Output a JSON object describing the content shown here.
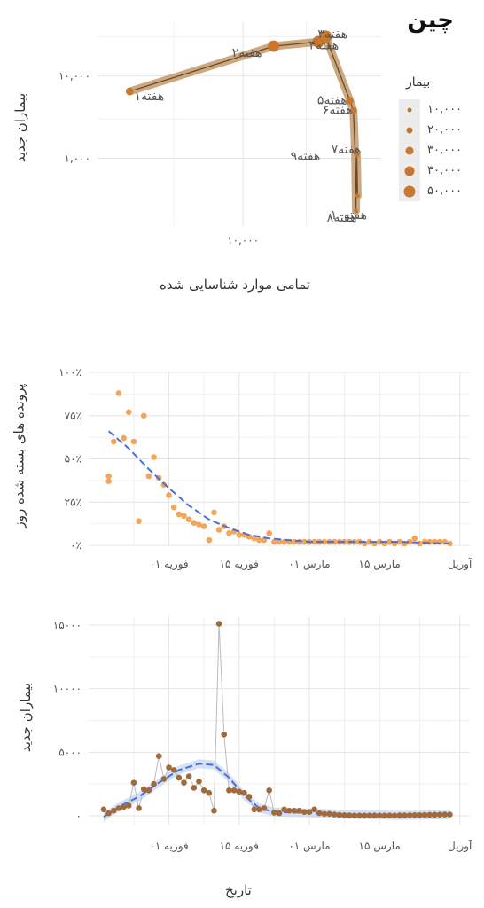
{
  "page_title": "چین",
  "chart_data": [
    {
      "type": "line",
      "ylabel": "بیماران جدید",
      "xlabel": "تمامی موارد شناسایی شده",
      "x_scale": "log",
      "y_scale": "log",
      "x_ticks": [
        {
          "value": 10000,
          "label": "۱۰,۰۰۰"
        }
      ],
      "y_ticks": [
        {
          "value": 1000,
          "label": "۱,۰۰۰"
        },
        {
          "value": 10000,
          "label": "۱۰,۰۰۰"
        }
      ],
      "points": [
        {
          "label": "هفته۱",
          "total": 1400,
          "new": 6500
        },
        {
          "label": "هفته۲",
          "total": 17000,
          "new": 23000
        },
        {
          "label": "هفته۳",
          "total": 37000,
          "new": 26000
        },
        {
          "label": "هفته۴",
          "total": 42000,
          "new": 30000
        },
        {
          "label": "هفته۵",
          "total": 64000,
          "new": 5000
        },
        {
          "label": "هفته۶",
          "total": 68000,
          "new": 3800
        },
        {
          "label": "هفته۷",
          "total": 70000,
          "new": 1200
        },
        {
          "label": "هفته۸",
          "total": 71000,
          "new": 230
        },
        {
          "label": "هفته۹",
          "total": 72000,
          "new": 1100
        },
        {
          "label": "هفته۱۰",
          "total": 73000,
          "new": 350
        }
      ],
      "legend_title": "بیمار",
      "legend": [
        {
          "label": "۱۰,۰۰۰",
          "value": 10000
        },
        {
          "label": "۲۰,۰۰۰",
          "value": 20000
        },
        {
          "label": "۳۰,۰۰۰",
          "value": 30000
        },
        {
          "label": "۴۰,۰۰۰",
          "value": 40000
        },
        {
          "label": "۵۰,۰۰۰",
          "value": 50000
        }
      ],
      "colors": {
        "line": "#6b4a2b",
        "band": "#c49a6c",
        "point": "#c8782e"
      }
    },
    {
      "type": "scatter",
      "ylabel": "پرونده های بسته شده روز",
      "x_ticks": [
        {
          "day": 14,
          "label": "۰۱ فوریه"
        },
        {
          "day": 28,
          "label": "۱۵ فوریه"
        },
        {
          "day": 42,
          "label": "۰۱ مارس"
        },
        {
          "day": 56,
          "label": "۱۵ مارس"
        },
        {
          "day": 72,
          "label": "آوریل"
        }
      ],
      "y_ticks": [
        {
          "value": 0,
          "label": "۰٪"
        },
        {
          "value": 25,
          "label": "۲۵٪"
        },
        {
          "value": 50,
          "label": "۵۰٪"
        },
        {
          "value": 75,
          "label": "۷۵٪"
        },
        {
          "value": 100,
          "label": "۱۰۰٪"
        }
      ],
      "points": [
        [
          2,
          40
        ],
        [
          2,
          37
        ],
        [
          3,
          60
        ],
        [
          4,
          88
        ],
        [
          5,
          62
        ],
        [
          6,
          77
        ],
        [
          7,
          60
        ],
        [
          8,
          14
        ],
        [
          9,
          75
        ],
        [
          10,
          40
        ],
        [
          11,
          51
        ],
        [
          12,
          39
        ],
        [
          13,
          35
        ],
        [
          14,
          29
        ],
        [
          15,
          22
        ],
        [
          16,
          18
        ],
        [
          17,
          17
        ],
        [
          18,
          15
        ],
        [
          19,
          13
        ],
        [
          20,
          12
        ],
        [
          21,
          11
        ],
        [
          22,
          3
        ],
        [
          23,
          19
        ],
        [
          24,
          9
        ],
        [
          25,
          11
        ],
        [
          26,
          7
        ],
        [
          27,
          8
        ],
        [
          28,
          6
        ],
        [
          29,
          6
        ],
        [
          30,
          5
        ],
        [
          31,
          4
        ],
        [
          32,
          3
        ],
        [
          33,
          3
        ],
        [
          34,
          7
        ],
        [
          35,
          2
        ],
        [
          36,
          2
        ],
        [
          37,
          2
        ],
        [
          38,
          2
        ],
        [
          39,
          2
        ],
        [
          40,
          2
        ],
        [
          41,
          2
        ],
        [
          42,
          2
        ],
        [
          43,
          2
        ],
        [
          44,
          2
        ],
        [
          45,
          2
        ],
        [
          46,
          2
        ],
        [
          47,
          2
        ],
        [
          48,
          2
        ],
        [
          49,
          2
        ],
        [
          50,
          2
        ],
        [
          51,
          2
        ],
        [
          52,
          2
        ],
        [
          53,
          1
        ],
        [
          54,
          2
        ],
        [
          55,
          1
        ],
        [
          56,
          2
        ],
        [
          57,
          1
        ],
        [
          58,
          2
        ],
        [
          59,
          1
        ],
        [
          60,
          2
        ],
        [
          61,
          1
        ],
        [
          62,
          2
        ],
        [
          63,
          4
        ],
        [
          64,
          1
        ],
        [
          65,
          2
        ],
        [
          66,
          2
        ],
        [
          67,
          2
        ],
        [
          68,
          2
        ],
        [
          69,
          2
        ],
        [
          70,
          1
        ]
      ],
      "trend": [
        [
          2,
          66
        ],
        [
          6,
          56
        ],
        [
          10,
          44
        ],
        [
          14,
          33
        ],
        [
          18,
          23
        ],
        [
          22,
          15
        ],
        [
          26,
          10
        ],
        [
          30,
          6
        ],
        [
          34,
          4
        ],
        [
          38,
          3
        ],
        [
          42,
          2
        ],
        [
          50,
          2
        ],
        [
          60,
          2
        ],
        [
          70,
          1
        ]
      ],
      "colors": {
        "point": "#ef9c47",
        "trend": "#4a6ee0"
      }
    },
    {
      "type": "scatter",
      "ylabel": "بیماران جدید",
      "xlabel": "تاریخ",
      "x_ticks": [
        {
          "day": 14,
          "label": "۰۱ فوریه"
        },
        {
          "day": 28,
          "label": "۱۵ فوریه"
        },
        {
          "day": 42,
          "label": "۰۱ مارس"
        },
        {
          "day": 56,
          "label": "۱۵ مارس"
        },
        {
          "day": 72,
          "label": "آوریل"
        }
      ],
      "y_ticks": [
        {
          "value": 0,
          "label": "۰"
        },
        {
          "value": 5000,
          "label": "۵۰۰۰"
        },
        {
          "value": 10000,
          "label": "۱۰۰۰۰"
        },
        {
          "value": 15000,
          "label": "۱۵۰۰۰"
        }
      ],
      "points": [
        [
          1,
          500
        ],
        [
          2,
          200
        ],
        [
          3,
          400
        ],
        [
          4,
          600
        ],
        [
          5,
          700
        ],
        [
          6,
          800
        ],
        [
          7,
          2600
        ],
        [
          8,
          600
        ],
        [
          9,
          2100
        ],
        [
          10,
          2000
        ],
        [
          11,
          2500
        ],
        [
          12,
          4700
        ],
        [
          13,
          2900
        ],
        [
          14,
          3800
        ],
        [
          15,
          3600
        ],
        [
          16,
          3000
        ],
        [
          17,
          2600
        ],
        [
          18,
          3100
        ],
        [
          19,
          2200
        ],
        [
          20,
          2700
        ],
        [
          21,
          2000
        ],
        [
          22,
          1800
        ],
        [
          23,
          400
        ],
        [
          24,
          15100
        ],
        [
          25,
          6400
        ],
        [
          26,
          2000
        ],
        [
          27,
          2000
        ],
        [
          28,
          1900
        ],
        [
          29,
          1800
        ],
        [
          30,
          1500
        ],
        [
          31,
          500
        ],
        [
          32,
          500
        ],
        [
          33,
          600
        ],
        [
          34,
          2000
        ],
        [
          35,
          250
        ],
        [
          36,
          200
        ],
        [
          37,
          500
        ],
        [
          38,
          400
        ],
        [
          39,
          400
        ],
        [
          40,
          400
        ],
        [
          41,
          300
        ],
        [
          42,
          300
        ],
        [
          43,
          500
        ],
        [
          44,
          200
        ],
        [
          45,
          150
        ],
        [
          46,
          150
        ],
        [
          47,
          100
        ],
        [
          48,
          60
        ],
        [
          49,
          40
        ],
        [
          50,
          30
        ],
        [
          51,
          20
        ],
        [
          52,
          20
        ],
        [
          53,
          20
        ],
        [
          54,
          20
        ],
        [
          55,
          20
        ],
        [
          56,
          20
        ],
        [
          57,
          20
        ],
        [
          58,
          20
        ],
        [
          59,
          20
        ],
        [
          60,
          30
        ],
        [
          61,
          30
        ],
        [
          62,
          40
        ],
        [
          63,
          50
        ],
        [
          64,
          50
        ],
        [
          65,
          60
        ],
        [
          66,
          70
        ],
        [
          67,
          80
        ],
        [
          68,
          90
        ],
        [
          69,
          100
        ],
        [
          70,
          100
        ]
      ],
      "trend": [
        [
          1,
          -100
        ],
        [
          4,
          700
        ],
        [
          8,
          1500
        ],
        [
          12,
          2600
        ],
        [
          16,
          3600
        ],
        [
          20,
          4100
        ],
        [
          23,
          4000
        ],
        [
          26,
          3000
        ],
        [
          29,
          1600
        ],
        [
          32,
          600
        ],
        [
          35,
          300
        ],
        [
          40,
          250
        ],
        [
          50,
          100
        ],
        [
          60,
          30
        ],
        [
          70,
          80
        ]
      ],
      "colors": {
        "point": "#a06a3a",
        "line": "#bbbbbb",
        "trend": "#4a6ee0",
        "band": "#b9cdef"
      }
    }
  ]
}
